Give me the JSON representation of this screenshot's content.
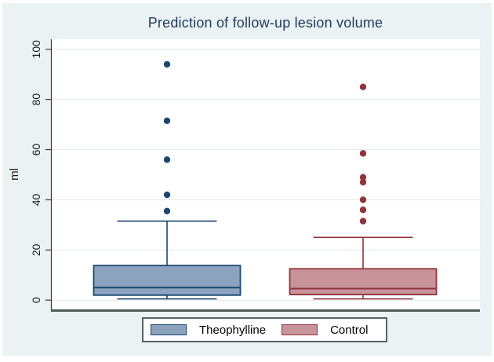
{
  "title": {
    "text": "Prediction of follow-up lesion volume",
    "color": "#1f3a5c"
  },
  "axes": {
    "ylabel": "ml",
    "ytick_labels": [
      "0",
      "20",
      "40",
      "60",
      "80",
      "100"
    ],
    "tick_color": "#1a1a1a",
    "grid_color": "#e0eaec",
    "axis_color": "#343b3f",
    "baseline_color": "#4d5a5c"
  },
  "legend": {
    "items": [
      {
        "label": "Theophylline",
        "fill": "#8da3bd",
        "stroke": "#1a476f"
      },
      {
        "label": "Control",
        "fill": "#c6949a",
        "stroke": "#90353b"
      }
    ]
  },
  "colors": {
    "figure_bg": "#eaf2f3",
    "plot_bg": "#ffffff"
  },
  "chart_data": {
    "type": "box",
    "title": "Prediction of follow-up lesion volume",
    "xlabel": "",
    "ylabel": "ml",
    "ylim": [
      -4,
      104
    ],
    "yticks": [
      0,
      20,
      40,
      60,
      80,
      100
    ],
    "grid": true,
    "legend_position": "bottom",
    "categories": [
      "Theophylline",
      "Control"
    ],
    "series": [
      {
        "name": "Theophylline",
        "whisker_low": 0.5,
        "q1": 2,
        "median": 5,
        "q3": 13.8,
        "whisker_high": 31.5,
        "outliers": [
          35.5,
          42,
          56,
          71.5,
          94
        ],
        "fill": "#8da3bd",
        "stroke": "#1a476f"
      },
      {
        "name": "Control",
        "whisker_low": 0.5,
        "q1": 2.2,
        "median": 4.6,
        "q3": 12.5,
        "whisker_high": 25,
        "outliers": [
          31.5,
          36,
          40,
          47,
          49,
          58.5,
          85
        ],
        "fill": "#c6949a",
        "stroke": "#90353b"
      }
    ]
  }
}
